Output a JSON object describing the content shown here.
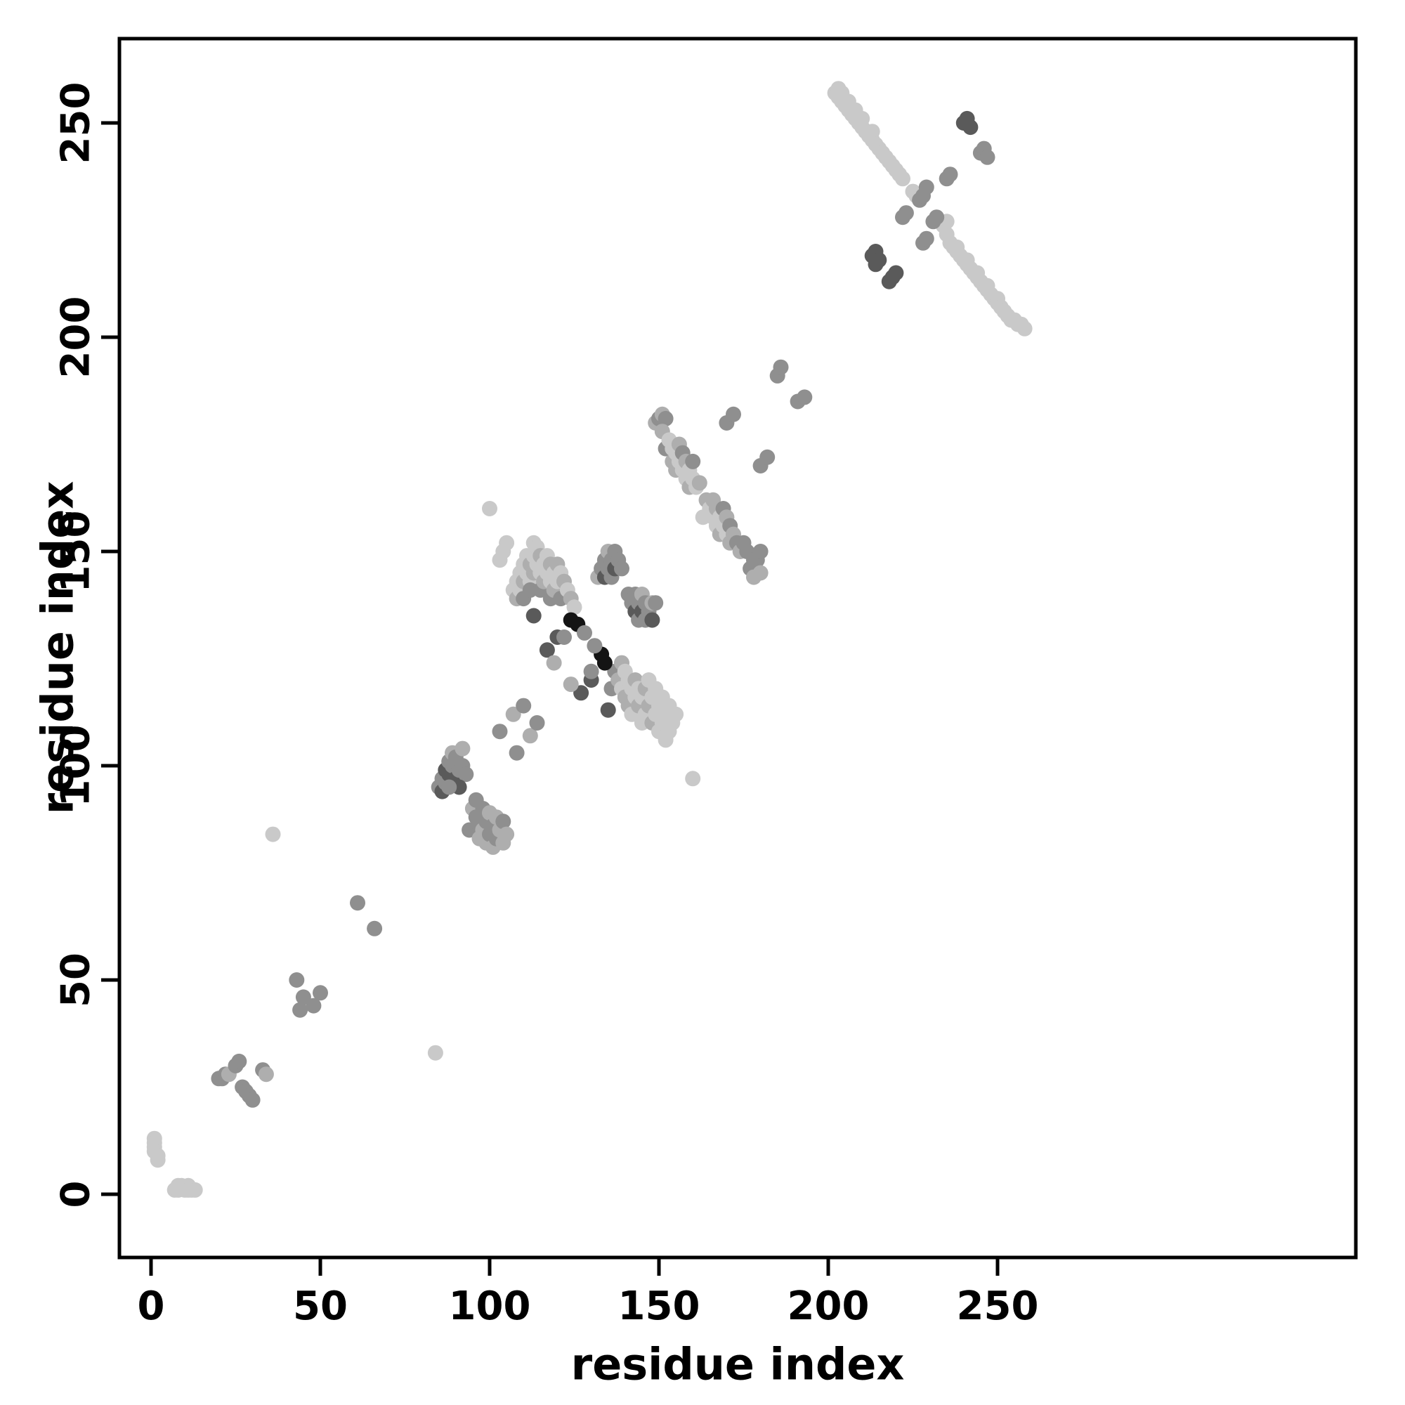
{
  "chart_data": {
    "type": "scatter",
    "title": "",
    "xlabel": "residue index",
    "ylabel": "residue index",
    "xlim": [
      -10,
      355
    ],
    "ylim": [
      -15,
      268
    ],
    "xticks": [
      0,
      50,
      100,
      150,
      200,
      250
    ],
    "yticks": [
      0,
      50,
      100,
      150,
      200,
      250
    ],
    "grid": false,
    "legend": "none",
    "background": "#ffffff",
    "palette": [
      "#c9c9c9",
      "#aeaeae",
      "#8f8f8f",
      "#5a5a5a",
      "#141414"
    ],
    "point_radius_px": 11,
    "points": [
      [
        1,
        13,
        0
      ],
      [
        1,
        12,
        0
      ],
      [
        1,
        11,
        0
      ],
      [
        1,
        10,
        0
      ],
      [
        2,
        9,
        0
      ],
      [
        2,
        8,
        0
      ],
      [
        7,
        1,
        0
      ],
      [
        8,
        1,
        0
      ],
      [
        9,
        2,
        0
      ],
      [
        10,
        1,
        0
      ],
      [
        11,
        2,
        0
      ],
      [
        12,
        1,
        0
      ],
      [
        13,
        1,
        0
      ],
      [
        8,
        2,
        0
      ],
      [
        11,
        1,
        0
      ],
      [
        20,
        27,
        2
      ],
      [
        21,
        27,
        2
      ],
      [
        22,
        28,
        2
      ],
      [
        23,
        28,
        1
      ],
      [
        25,
        30,
        2
      ],
      [
        26,
        31,
        2
      ],
      [
        27,
        25,
        2
      ],
      [
        28,
        24,
        2
      ],
      [
        29,
        23,
        2
      ],
      [
        30,
        22,
        2
      ],
      [
        33,
        29,
        2
      ],
      [
        34,
        28,
        1
      ],
      [
        43,
        50,
        2
      ],
      [
        45,
        46,
        2
      ],
      [
        48,
        44,
        2
      ],
      [
        50,
        47,
        2
      ],
      [
        44,
        43,
        2
      ],
      [
        61,
        68,
        2
      ],
      [
        66,
        62,
        2
      ],
      [
        36,
        84,
        0
      ],
      [
        84,
        33,
        0
      ],
      [
        85,
        95,
        2
      ],
      [
        86,
        97,
        2
      ],
      [
        86,
        94,
        3
      ],
      [
        87,
        99,
        3
      ],
      [
        87,
        96,
        2
      ],
      [
        88,
        101,
        2
      ],
      [
        88,
        98,
        3
      ],
      [
        89,
        103,
        1
      ],
      [
        89,
        100,
        2
      ],
      [
        90,
        97,
        3
      ],
      [
        90,
        102,
        2
      ],
      [
        91,
        99,
        2
      ],
      [
        92,
        104,
        1
      ],
      [
        92,
        100,
        2
      ],
      [
        93,
        98,
        2
      ],
      [
        91,
        95,
        3
      ],
      [
        88,
        95,
        2
      ],
      [
        94,
        85,
        2
      ],
      [
        95,
        90,
        1
      ],
      [
        96,
        88,
        2
      ],
      [
        96,
        92,
        2
      ],
      [
        97,
        86,
        2
      ],
      [
        97,
        83,
        1
      ],
      [
        98,
        90,
        2
      ],
      [
        98,
        85,
        1
      ],
      [
        99,
        87,
        2
      ],
      [
        99,
        82,
        1
      ],
      [
        100,
        84,
        2
      ],
      [
        100,
        89,
        1
      ],
      [
        101,
        86,
        2
      ],
      [
        101,
        81,
        1
      ],
      [
        102,
        88,
        1
      ],
      [
        102,
        83,
        2
      ],
      [
        103,
        85,
        1
      ],
      [
        104,
        87,
        2
      ],
      [
        104,
        82,
        1
      ],
      [
        105,
        84,
        1
      ],
      [
        103,
        108,
        2
      ],
      [
        108,
        103,
        2
      ],
      [
        107,
        112,
        1
      ],
      [
        112,
        107,
        1
      ],
      [
        110,
        114,
        2
      ],
      [
        114,
        110,
        2
      ],
      [
        103,
        148,
        0
      ],
      [
        104,
        150,
        0
      ],
      [
        105,
        152,
        0
      ],
      [
        107,
        141,
        0
      ],
      [
        108,
        143,
        0
      ],
      [
        108,
        139,
        1
      ],
      [
        109,
        145,
        0
      ],
      [
        109,
        141,
        0
      ],
      [
        110,
        147,
        0
      ],
      [
        110,
        143,
        1
      ],
      [
        110,
        139,
        2
      ],
      [
        111,
        149,
        0
      ],
      [
        111,
        145,
        0
      ],
      [
        112,
        147,
        1
      ],
      [
        112,
        143,
        0
      ],
      [
        112,
        141,
        2
      ],
      [
        113,
        149,
        0
      ],
      [
        113,
        145,
        1
      ],
      [
        113,
        152,
        0
      ],
      [
        114,
        151,
        0
      ],
      [
        114,
        147,
        0
      ],
      [
        115,
        149,
        1
      ],
      [
        115,
        145,
        0
      ],
      [
        115,
        141,
        2
      ],
      [
        116,
        147,
        0
      ],
      [
        116,
        143,
        1
      ],
      [
        117,
        145,
        0
      ],
      [
        117,
        149,
        0
      ],
      [
        118,
        147,
        1
      ],
      [
        118,
        143,
        0
      ],
      [
        118,
        139,
        2
      ],
      [
        119,
        145,
        0
      ],
      [
        119,
        141,
        1
      ],
      [
        120,
        147,
        1
      ],
      [
        120,
        143,
        0
      ],
      [
        121,
        145,
        0
      ],
      [
        121,
        139,
        2
      ],
      [
        122,
        143,
        1
      ],
      [
        123,
        141,
        0
      ],
      [
        124,
        139,
        1
      ],
      [
        125,
        137,
        0
      ],
      [
        136,
        118,
        2
      ],
      [
        137,
        122,
        2
      ],
      [
        138,
        120,
        1
      ],
      [
        139,
        118,
        0
      ],
      [
        139,
        124,
        1
      ],
      [
        140,
        122,
        0
      ],
      [
        140,
        116,
        1
      ],
      [
        141,
        120,
        0
      ],
      [
        141,
        114,
        1
      ],
      [
        142,
        118,
        0
      ],
      [
        142,
        112,
        0
      ],
      [
        143,
        120,
        1
      ],
      [
        143,
        116,
        0
      ],
      [
        144,
        118,
        0
      ],
      [
        144,
        114,
        1
      ],
      [
        145,
        116,
        0
      ],
      [
        145,
        110,
        0
      ],
      [
        146,
        118,
        1
      ],
      [
        146,
        112,
        0
      ],
      [
        147,
        114,
        1
      ],
      [
        147,
        120,
        0
      ],
      [
        148,
        116,
        0
      ],
      [
        148,
        110,
        1
      ],
      [
        149,
        118,
        0
      ],
      [
        149,
        112,
        0
      ],
      [
        150,
        114,
        0
      ],
      [
        150,
        108,
        0
      ],
      [
        151,
        116,
        0
      ],
      [
        151,
        110,
        0
      ],
      [
        152,
        112,
        0
      ],
      [
        152,
        106,
        0
      ],
      [
        153,
        114,
        0
      ],
      [
        153,
        108,
        0
      ],
      [
        154,
        110,
        0
      ],
      [
        155,
        112,
        0
      ],
      [
        124,
        134,
        4
      ],
      [
        126,
        133,
        4
      ],
      [
        133,
        126,
        4
      ],
      [
        134,
        124,
        4
      ],
      [
        117,
        127,
        3
      ],
      [
        127,
        117,
        3
      ],
      [
        120,
        130,
        3
      ],
      [
        130,
        120,
        3
      ],
      [
        113,
        135,
        3
      ],
      [
        135,
        113,
        3
      ],
      [
        122,
        130,
        2
      ],
      [
        130,
        122,
        2
      ],
      [
        119,
        124,
        1
      ],
      [
        124,
        119,
        1
      ],
      [
        128,
        131,
        2
      ],
      [
        131,
        128,
        2
      ],
      [
        132,
        144,
        1
      ],
      [
        133,
        146,
        2
      ],
      [
        134,
        148,
        2
      ],
      [
        134,
        144,
        3
      ],
      [
        135,
        146,
        2
      ],
      [
        135,
        150,
        1
      ],
      [
        136,
        148,
        2
      ],
      [
        136,
        144,
        2
      ],
      [
        137,
        146,
        3
      ],
      [
        137,
        150,
        2
      ],
      [
        138,
        148,
        2
      ],
      [
        139,
        146,
        2
      ],
      [
        141,
        140,
        2
      ],
      [
        142,
        138,
        2
      ],
      [
        143,
        136,
        3
      ],
      [
        143,
        140,
        2
      ],
      [
        144,
        138,
        2
      ],
      [
        144,
        134,
        2
      ],
      [
        145,
        136,
        3
      ],
      [
        145,
        140,
        1
      ],
      [
        146,
        138,
        2
      ],
      [
        146,
        134,
        2
      ],
      [
        147,
        136,
        2
      ],
      [
        148,
        134,
        3
      ],
      [
        148,
        138,
        1
      ],
      [
        149,
        138,
        2
      ],
      [
        100,
        160,
        0
      ],
      [
        160,
        97,
        0
      ],
      [
        149,
        180,
        1
      ],
      [
        150,
        181,
        2
      ],
      [
        151,
        182,
        1
      ],
      [
        152,
        181,
        2
      ],
      [
        151,
        178,
        1
      ],
      [
        152,
        174,
        2
      ],
      [
        153,
        176,
        0
      ],
      [
        154,
        174,
        0
      ],
      [
        154,
        171,
        1
      ],
      [
        155,
        173,
        0
      ],
      [
        155,
        169,
        1
      ],
      [
        156,
        171,
        0
      ],
      [
        156,
        175,
        1
      ],
      [
        157,
        169,
        0
      ],
      [
        157,
        173,
        2
      ],
      [
        158,
        167,
        0
      ],
      [
        158,
        171,
        1
      ],
      [
        159,
        169,
        0
      ],
      [
        159,
        165,
        1
      ],
      [
        160,
        167,
        0
      ],
      [
        160,
        171,
        2
      ],
      [
        161,
        165,
        0
      ],
      [
        162,
        166,
        1
      ],
      [
        163,
        158,
        0
      ],
      [
        164,
        162,
        1
      ],
      [
        165,
        160,
        0
      ],
      [
        166,
        158,
        0
      ],
      [
        166,
        162,
        1
      ],
      [
        167,
        156,
        0
      ],
      [
        167,
        160,
        1
      ],
      [
        168,
        158,
        0
      ],
      [
        168,
        154,
        1
      ],
      [
        169,
        156,
        0
      ],
      [
        169,
        160,
        2
      ],
      [
        170,
        154,
        0
      ],
      [
        170,
        158,
        1
      ],
      [
        171,
        156,
        2
      ],
      [
        171,
        152,
        1
      ],
      [
        172,
        154,
        1
      ],
      [
        173,
        152,
        2
      ],
      [
        174,
        150,
        1
      ],
      [
        175,
        152,
        2
      ],
      [
        176,
        150,
        2
      ],
      [
        177,
        146,
        2
      ],
      [
        178,
        144,
        1
      ],
      [
        178,
        148,
        2
      ],
      [
        179,
        148,
        2
      ],
      [
        180,
        145,
        1
      ],
      [
        180,
        150,
        2
      ],
      [
        170,
        180,
        2
      ],
      [
        172,
        182,
        2
      ],
      [
        180,
        170,
        2
      ],
      [
        182,
        172,
        2
      ],
      [
        185,
        191,
        2
      ],
      [
        186,
        193,
        2
      ],
      [
        191,
        185,
        2
      ],
      [
        193,
        186,
        2
      ],
      [
        202,
        257,
        0
      ],
      [
        203,
        258,
        0
      ],
      [
        203,
        256,
        0
      ],
      [
        204,
        255,
        0
      ],
      [
        204,
        257,
        0
      ],
      [
        205,
        254,
        0
      ],
      [
        206,
        253,
        0
      ],
      [
        206,
        255,
        0
      ],
      [
        207,
        252,
        0
      ],
      [
        208,
        251,
        0
      ],
      [
        208,
        253,
        0
      ],
      [
        209,
        250,
        0
      ],
      [
        210,
        249,
        0
      ],
      [
        210,
        251,
        0
      ],
      [
        211,
        248,
        0
      ],
      [
        212,
        247,
        0
      ],
      [
        213,
        246,
        0
      ],
      [
        213,
        248,
        0
      ],
      [
        214,
        245,
        0
      ],
      [
        215,
        244,
        0
      ],
      [
        216,
        243,
        0
      ],
      [
        217,
        242,
        0
      ],
      [
        218,
        241,
        0
      ],
      [
        219,
        240,
        0
      ],
      [
        220,
        239,
        0
      ],
      [
        221,
        238,
        0
      ],
      [
        222,
        237,
        0
      ],
      [
        225,
        234,
        0
      ],
      [
        226,
        233,
        0
      ],
      [
        234,
        226,
        0
      ],
      [
        235,
        224,
        0
      ],
      [
        235,
        227,
        0
      ],
      [
        236,
        222,
        0
      ],
      [
        237,
        221,
        0
      ],
      [
        238,
        220,
        0
      ],
      [
        238,
        221,
        0
      ],
      [
        239,
        219,
        0
      ],
      [
        240,
        218,
        0
      ],
      [
        241,
        217,
        0
      ],
      [
        241,
        218,
        0
      ],
      [
        242,
        216,
        0
      ],
      [
        243,
        215,
        0
      ],
      [
        244,
        214,
        0
      ],
      [
        244,
        215,
        0
      ],
      [
        245,
        213,
        0
      ],
      [
        246,
        212,
        0
      ],
      [
        247,
        211,
        0
      ],
      [
        247,
        212,
        0
      ],
      [
        248,
        210,
        0
      ],
      [
        249,
        209,
        0
      ],
      [
        250,
        208,
        0
      ],
      [
        250,
        209,
        0
      ],
      [
        251,
        207,
        0
      ],
      [
        252,
        206,
        0
      ],
      [
        253,
        205,
        0
      ],
      [
        254,
        204,
        0
      ],
      [
        255,
        204,
        0
      ],
      [
        256,
        203,
        0
      ],
      [
        257,
        203,
        0
      ],
      [
        258,
        202,
        0
      ],
      [
        240,
        250,
        3
      ],
      [
        241,
        251,
        3
      ],
      [
        242,
        249,
        3
      ],
      [
        245,
        243,
        2
      ],
      [
        246,
        244,
        2
      ],
      [
        247,
        242,
        2
      ],
      [
        227,
        232,
        2
      ],
      [
        228,
        233,
        2
      ],
      [
        231,
        227,
        2
      ],
      [
        232,
        228,
        2
      ],
      [
        213,
        219,
        3
      ],
      [
        214,
        220,
        3
      ],
      [
        215,
        218,
        3
      ],
      [
        214,
        217,
        3
      ],
      [
        218,
        213,
        3
      ],
      [
        219,
        214,
        3
      ],
      [
        220,
        215,
        3
      ],
      [
        222,
        228,
        2
      ],
      [
        223,
        229,
        2
      ],
      [
        228,
        222,
        2
      ],
      [
        229,
        223,
        2
      ],
      [
        235,
        237,
        2
      ],
      [
        236,
        238,
        2
      ],
      [
        229,
        235,
        2
      ]
    ]
  }
}
